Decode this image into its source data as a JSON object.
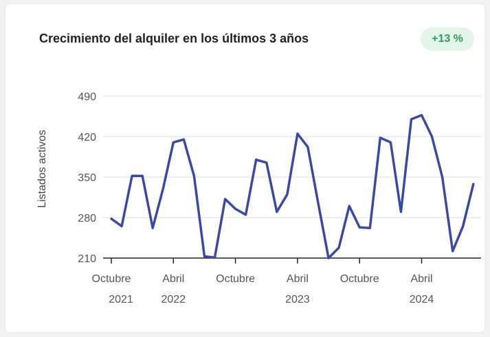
{
  "card": {
    "title": "Crecimiento del alquiler en los últimos 3 años",
    "badge": "+13 %",
    "badge_color": "#2e9d57",
    "badge_bg": "#e3f5e9"
  },
  "chart_data": {
    "type": "line",
    "title": "Crecimiento del alquiler en los últimos 3 años",
    "xlabel": "",
    "ylabel": "Listados activos",
    "ylim": [
      210,
      490
    ],
    "yticks": [
      210,
      280,
      350,
      420,
      490
    ],
    "grid": true,
    "line_color": "#3a49a8",
    "x_tick_labels": [
      {
        "month": "Octubre",
        "year": "2021",
        "index": 0
      },
      {
        "month": "Abril",
        "year": "2022",
        "index": 6
      },
      {
        "month": "Octubre",
        "year": "",
        "index": 12
      },
      {
        "month": "Abril",
        "year": "2023",
        "index": 18
      },
      {
        "month": "Octubre",
        "year": "",
        "index": 24
      },
      {
        "month": "Abril",
        "year": "2024",
        "index": 30
      }
    ],
    "series": [
      {
        "values": [
          278,
          265,
          352,
          352,
          262,
          330,
          410,
          415,
          352,
          213,
          211,
          312,
          295,
          285,
          380,
          375,
          290,
          320,
          425,
          402,
          305,
          210,
          228,
          300,
          263,
          262,
          418,
          410,
          290,
          450,
          457,
          420,
          350,
          222,
          265,
          338
        ]
      }
    ]
  }
}
